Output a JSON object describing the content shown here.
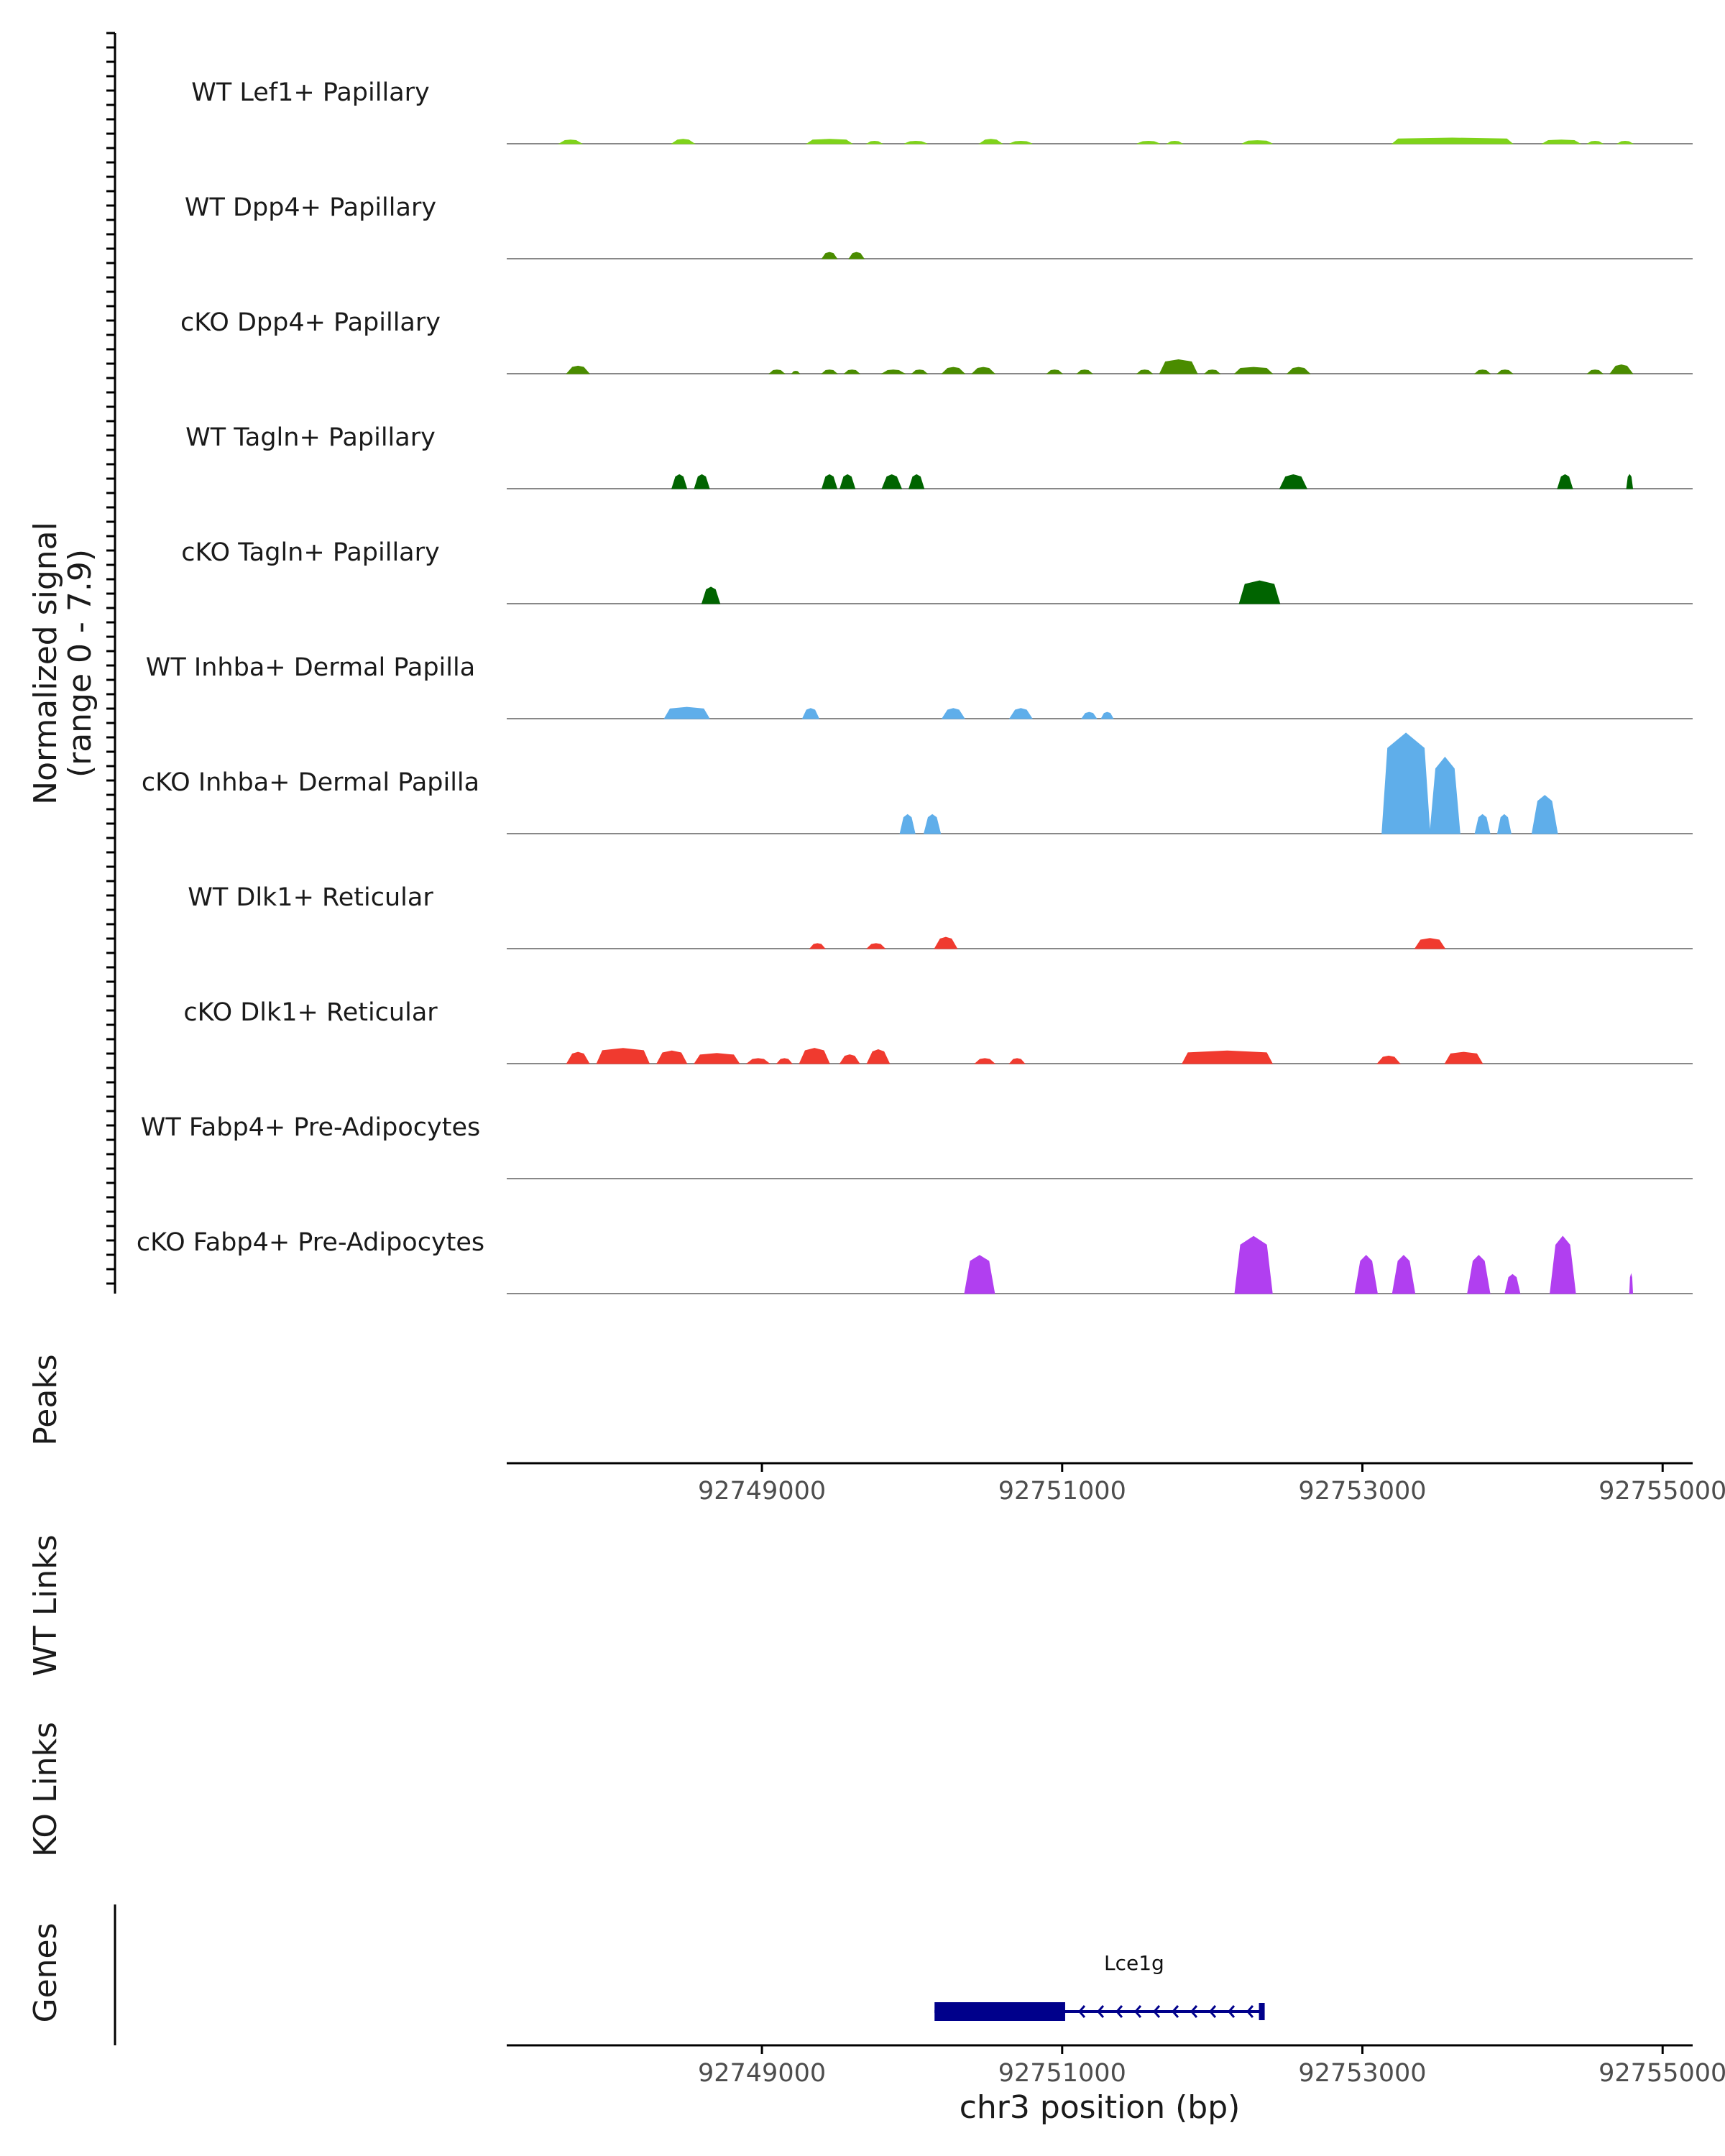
{
  "chart_data": {
    "type": "area",
    "title": "",
    "signal_axis_label": "Normalized signal",
    "signal_axis_range_label": "(range 0 - 7.9)",
    "ylim": [
      0,
      7.9
    ],
    "xlim": [
      92747300,
      92755200
    ],
    "x_ticks": [
      "92749000",
      "92751000",
      "92753000",
      "92755000"
    ],
    "x_tick_values": [
      92749000,
      92751000,
      92753000,
      92755000
    ],
    "xlabel": "chr3 position (bp)",
    "peaks_label": "Peaks",
    "wt_links_label": "WT Links",
    "ko_links_label": "KO Links",
    "genes_label": "Genes",
    "colors": {
      "lef1": "#7fd31a",
      "papillary": "#4a8c00",
      "tagln": "#006400",
      "inhba": "#5faeea",
      "dlk1": "#f03a2f",
      "fabp4": "#b13ff0",
      "gene": "#00008b",
      "baseline": "#888888"
    },
    "tracks": [
      {
        "name": "WT Lef1+ Papillary",
        "color_key": "lef1",
        "regions": [
          {
            "s": 92747650,
            "e": 92747800,
            "v": 0.3
          },
          {
            "s": 92748400,
            "e": 92748550,
            "v": 0.35
          },
          {
            "s": 92749300,
            "e": 92749600,
            "v": 0.35
          },
          {
            "s": 92749700,
            "e": 92749800,
            "v": 0.2
          },
          {
            "s": 92749950,
            "e": 92750100,
            "v": 0.2
          },
          {
            "s": 92750450,
            "e": 92750600,
            "v": 0.35
          },
          {
            "s": 92750650,
            "e": 92750800,
            "v": 0.2
          },
          {
            "s": 92751500,
            "e": 92751650,
            "v": 0.2
          },
          {
            "s": 92751700,
            "e": 92751800,
            "v": 0.2
          },
          {
            "s": 92752200,
            "e": 92752400,
            "v": 0.25
          },
          {
            "s": 92753200,
            "e": 92754000,
            "v": 0.45
          },
          {
            "s": 92754200,
            "e": 92754450,
            "v": 0.3
          },
          {
            "s": 92754500,
            "e": 92754600,
            "v": 0.2
          },
          {
            "s": 92754700,
            "e": 92754800,
            "v": 0.2
          }
        ]
      },
      {
        "name": "WT Dpp4+ Papillary",
        "color_key": "papillary",
        "regions": [
          {
            "s": 92749400,
            "e": 92749500,
            "v": 0.5
          },
          {
            "s": 92749580,
            "e": 92749680,
            "v": 0.5
          }
        ]
      },
      {
        "name": "cKO Dpp4+ Papillary",
        "color_key": "papillary",
        "regions": [
          {
            "s": 92747700,
            "e": 92747850,
            "v": 0.6
          },
          {
            "s": 92749050,
            "e": 92749150,
            "v": 0.3
          },
          {
            "s": 92749200,
            "e": 92749250,
            "v": 0.2
          },
          {
            "s": 92749400,
            "e": 92749500,
            "v": 0.3
          },
          {
            "s": 92749550,
            "e": 92749650,
            "v": 0.3
          },
          {
            "s": 92749800,
            "e": 92749950,
            "v": 0.3
          },
          {
            "s": 92750000,
            "e": 92750100,
            "v": 0.3
          },
          {
            "s": 92750200,
            "e": 92750350,
            "v": 0.5
          },
          {
            "s": 92750400,
            "e": 92750550,
            "v": 0.5
          },
          {
            "s": 92750900,
            "e": 92751000,
            "v": 0.3
          },
          {
            "s": 92751100,
            "e": 92751200,
            "v": 0.3
          },
          {
            "s": 92751500,
            "e": 92751600,
            "v": 0.3
          },
          {
            "s": 92751650,
            "e": 92751900,
            "v": 1.1
          },
          {
            "s": 92751950,
            "e": 92752050,
            "v": 0.3
          },
          {
            "s": 92752150,
            "e": 92752400,
            "v": 0.5
          },
          {
            "s": 92752500,
            "e": 92752650,
            "v": 0.5
          },
          {
            "s": 92753750,
            "e": 92753850,
            "v": 0.3
          },
          {
            "s": 92753900,
            "e": 92754000,
            "v": 0.3
          },
          {
            "s": 92754500,
            "e": 92754600,
            "v": 0.3
          },
          {
            "s": 92754650,
            "e": 92754800,
            "v": 0.7
          }
        ]
      },
      {
        "name": "WT Tagln+ Papillary",
        "color_key": "tagln",
        "regions": [
          {
            "s": 92748400,
            "e": 92748500,
            "v": 1.1
          },
          {
            "s": 92748550,
            "e": 92748650,
            "v": 1.1
          },
          {
            "s": 92749400,
            "e": 92749500,
            "v": 1.1
          },
          {
            "s": 92749520,
            "e": 92749620,
            "v": 1.1
          },
          {
            "s": 92749800,
            "e": 92749930,
            "v": 1.1
          },
          {
            "s": 92749980,
            "e": 92750080,
            "v": 1.1
          },
          {
            "s": 92752450,
            "e": 92752630,
            "v": 1.1
          },
          {
            "s": 92754300,
            "e": 92754400,
            "v": 1.1
          },
          {
            "s": 92754760,
            "e": 92754800,
            "v": 1.1
          }
        ]
      },
      {
        "name": "cKO Tagln+ Papillary",
        "color_key": "tagln",
        "regions": [
          {
            "s": 92748600,
            "e": 92748720,
            "v": 1.3
          },
          {
            "s": 92752180,
            "e": 92752450,
            "v": 1.8
          }
        ]
      },
      {
        "name": "WT Inhba+ Dermal Papilla",
        "color_key": "inhba",
        "regions": [
          {
            "s": 92748350,
            "e": 92748650,
            "v": 0.9
          },
          {
            "s": 92749270,
            "e": 92749380,
            "v": 0.8
          },
          {
            "s": 92750200,
            "e": 92750350,
            "v": 0.8
          },
          {
            "s": 92750650,
            "e": 92750800,
            "v": 0.8
          },
          {
            "s": 92751130,
            "e": 92751230,
            "v": 0.5
          },
          {
            "s": 92751260,
            "e": 92751340,
            "v": 0.5
          }
        ]
      },
      {
        "name": "cKO Inhba+ Dermal Papilla",
        "color_key": "inhba",
        "regions": [
          {
            "s": 92749920,
            "e": 92750020,
            "v": 1.5
          },
          {
            "s": 92750080,
            "e": 92750190,
            "v": 1.5
          },
          {
            "s": 92753130,
            "e": 92753450,
            "v": 7.9
          },
          {
            "s": 92753450,
            "e": 92753650,
            "v": 6.0
          },
          {
            "s": 92753750,
            "e": 92753850,
            "v": 1.5
          },
          {
            "s": 92753900,
            "e": 92753990,
            "v": 1.5
          },
          {
            "s": 92754130,
            "e": 92754300,
            "v": 3.0
          }
        ]
      },
      {
        "name": "WT Dlk1+ Reticular",
        "color_key": "dlk1",
        "regions": [
          {
            "s": 92749320,
            "e": 92749420,
            "v": 0.4
          },
          {
            "s": 92749700,
            "e": 92749820,
            "v": 0.4
          },
          {
            "s": 92750150,
            "e": 92750300,
            "v": 0.9
          },
          {
            "s": 92753350,
            "e": 92753550,
            "v": 0.8
          }
        ]
      },
      {
        "name": "cKO Dlk1+ Reticular",
        "color_key": "dlk1",
        "regions": [
          {
            "s": 92747700,
            "e": 92747850,
            "v": 0.9
          },
          {
            "s": 92747900,
            "e": 92748250,
            "v": 1.2
          },
          {
            "s": 92748300,
            "e": 92748500,
            "v": 1.0
          },
          {
            "s": 92748550,
            "e": 92748850,
            "v": 0.8
          },
          {
            "s": 92748900,
            "e": 92749050,
            "v": 0.4
          },
          {
            "s": 92749100,
            "e": 92749200,
            "v": 0.4
          },
          {
            "s": 92749250,
            "e": 92749450,
            "v": 1.2
          },
          {
            "s": 92749520,
            "e": 92749650,
            "v": 0.7
          },
          {
            "s": 92749700,
            "e": 92749850,
            "v": 1.1
          },
          {
            "s": 92750420,
            "e": 92750550,
            "v": 0.4
          },
          {
            "s": 92750650,
            "e": 92750750,
            "v": 0.4
          },
          {
            "s": 92751800,
            "e": 92752400,
            "v": 1.0
          },
          {
            "s": 92753100,
            "e": 92753250,
            "v": 0.6
          },
          {
            "s": 92753550,
            "e": 92753800,
            "v": 0.9
          }
        ]
      },
      {
        "name": "WT Fabp4+ Pre-Adipocytes",
        "color_key": "fabp4",
        "regions": []
      },
      {
        "name": "cKO Fabp4+ Pre-Adipocytes",
        "color_key": "fabp4",
        "regions": [
          {
            "s": 92750350,
            "e": 92750550,
            "v": 3.0
          },
          {
            "s": 92752150,
            "e": 92752400,
            "v": 4.5
          },
          {
            "s": 92752950,
            "e": 92753100,
            "v": 3.0
          },
          {
            "s": 92753200,
            "e": 92753350,
            "v": 3.0
          },
          {
            "s": 92753700,
            "e": 92753850,
            "v": 3.0
          },
          {
            "s": 92753950,
            "e": 92754050,
            "v": 1.5
          },
          {
            "s": 92754250,
            "e": 92754420,
            "v": 4.5
          },
          {
            "s": 92754780,
            "e": 92754800,
            "v": 1.5
          }
        ]
      }
    ],
    "gene": {
      "name": "Lce1g",
      "start": 92750150,
      "end": 92752330,
      "thick_start": 92750150,
      "thick_end": 92751020,
      "strand": "-"
    }
  }
}
